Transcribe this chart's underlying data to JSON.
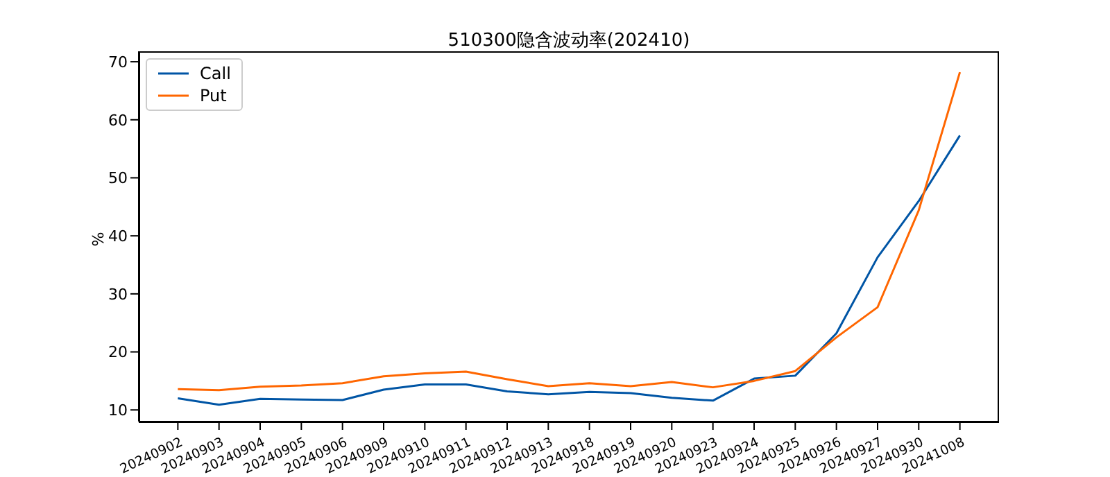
{
  "chart_data": {
    "type": "line",
    "title": "510300隐含波动率(202410)",
    "ylabel": "%",
    "categories": [
      "20240902",
      "20240903",
      "20240904",
      "20240905",
      "20240906",
      "20240909",
      "20240910",
      "20240911",
      "20240912",
      "20240913",
      "20240918",
      "20240919",
      "20240920",
      "20240923",
      "20240924",
      "20240925",
      "20240926",
      "20240927",
      "20240930",
      "20241008"
    ],
    "series": [
      {
        "name": "Call",
        "color": "#0055a5",
        "values": [
          12.0,
          10.9,
          11.9,
          11.8,
          11.7,
          13.5,
          14.4,
          14.4,
          13.2,
          12.7,
          13.1,
          12.9,
          12.1,
          11.6,
          15.4,
          15.9,
          23.2,
          36.3,
          46.0,
          57.3
        ]
      },
      {
        "name": "Put",
        "color": "#ff6600",
        "values": [
          13.6,
          13.4,
          14.0,
          14.2,
          14.6,
          15.8,
          16.3,
          16.6,
          15.3,
          14.1,
          14.6,
          14.1,
          14.8,
          13.9,
          15.0,
          16.7,
          22.5,
          27.7,
          44.4,
          68.2
        ]
      }
    ],
    "ylim": [
      8,
      71.8
    ],
    "yticks": [
      10,
      20,
      30,
      40,
      50,
      60,
      70
    ],
    "grid": false,
    "legend": "top left",
    "marker": "none",
    "line_style": "solid"
  }
}
